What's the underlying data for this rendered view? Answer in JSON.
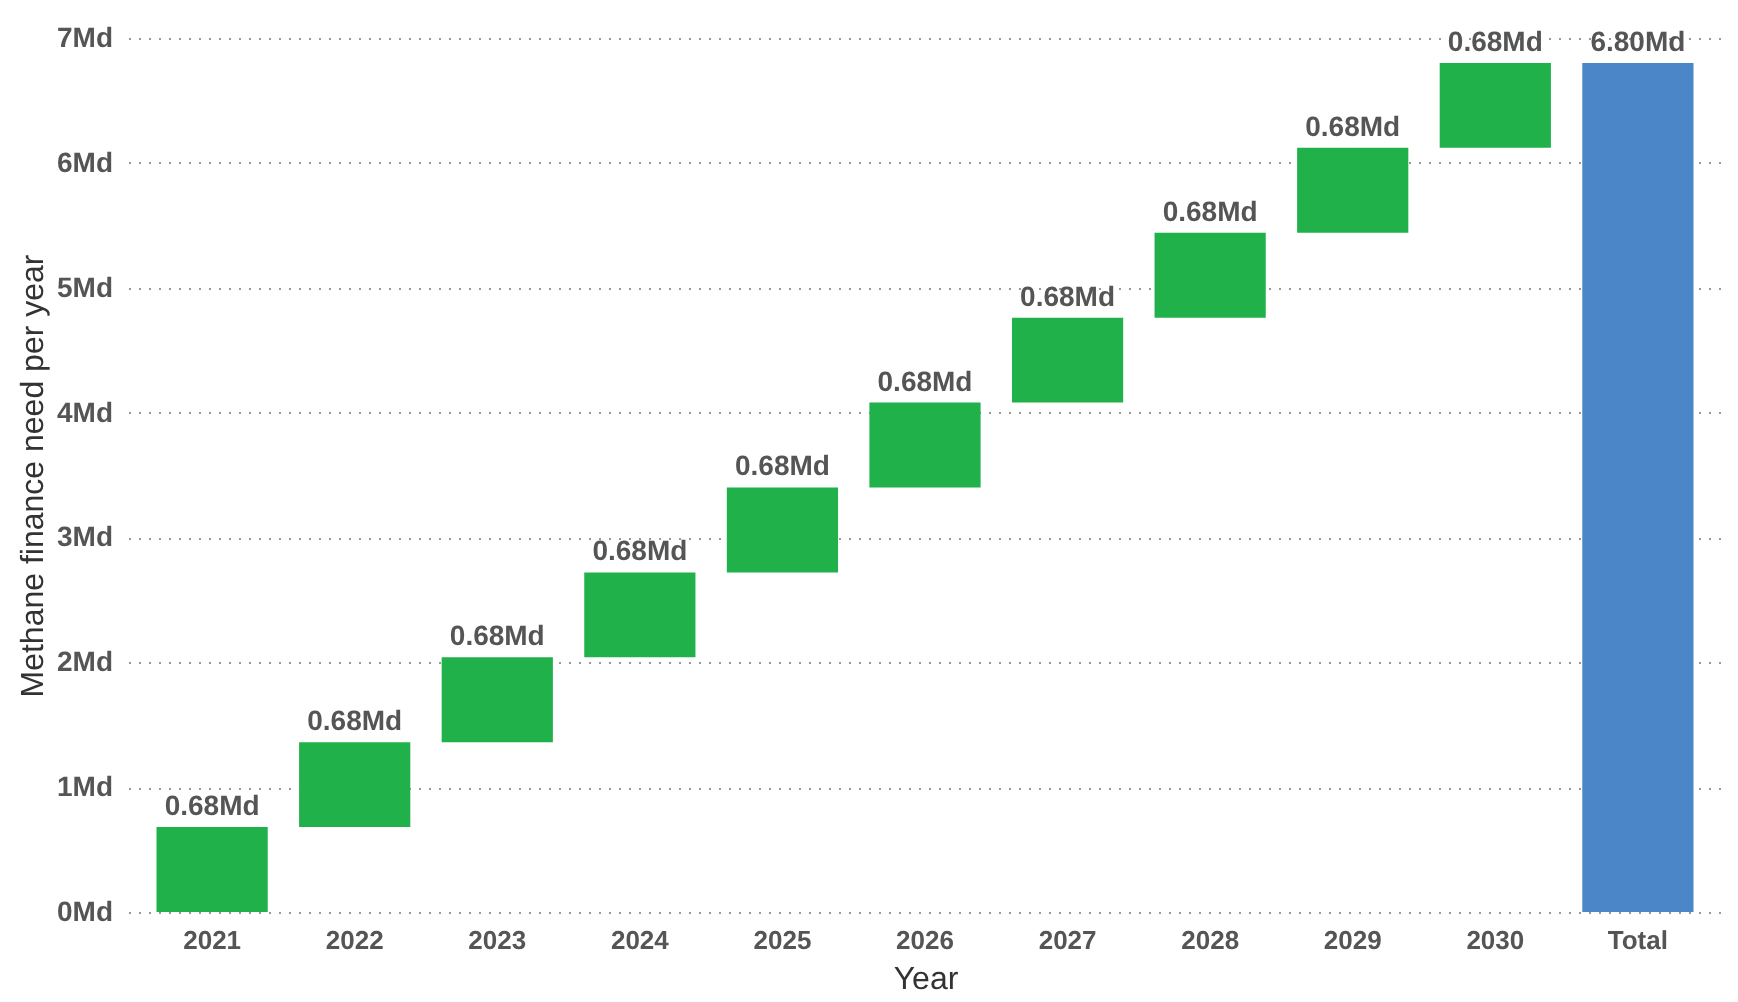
{
  "chart_data": {
    "type": "bar",
    "xlabel": "Year",
    "ylabel": "Methane finance need per year",
    "categories": [
      "2021",
      "2022",
      "2023",
      "2024",
      "2025",
      "2026",
      "2027",
      "2028",
      "2029",
      "2030",
      "Total"
    ],
    "values": [
      0.68,
      0.68,
      0.68,
      0.68,
      0.68,
      0.68,
      0.68,
      0.68,
      0.68,
      0.68,
      6.8
    ],
    "base": [
      0,
      0.68,
      1.36,
      2.04,
      2.72,
      3.4,
      4.08,
      4.76,
      5.44,
      6.12,
      0
    ],
    "colors": [
      "#21b14b",
      "#21b14b",
      "#21b14b",
      "#21b14b",
      "#21b14b",
      "#21b14b",
      "#21b14b",
      "#21b14b",
      "#21b14b",
      "#21b14b",
      "#4a86c8"
    ],
    "value_labels": [
      "0.68Md",
      "0.68Md",
      "0.68Md",
      "0.68Md",
      "0.68Md",
      "0.68Md",
      "0.68Md",
      "0.68Md",
      "0.68Md",
      "0.68Md",
      "6.80Md"
    ],
    "ylim": [
      0,
      7
    ],
    "yticks": [
      {
        "value": 0,
        "label": "0Md"
      },
      {
        "value": 1,
        "label": "1Md"
      },
      {
        "value": 2,
        "label": "2Md"
      },
      {
        "value": 3,
        "label": "3Md"
      },
      {
        "value": 4,
        "label": "4Md"
      },
      {
        "value": 5,
        "label": "5Md"
      },
      {
        "value": 6,
        "label": "6Md"
      },
      {
        "value": 7,
        "label": "7Md"
      }
    ],
    "grid": "y"
  }
}
